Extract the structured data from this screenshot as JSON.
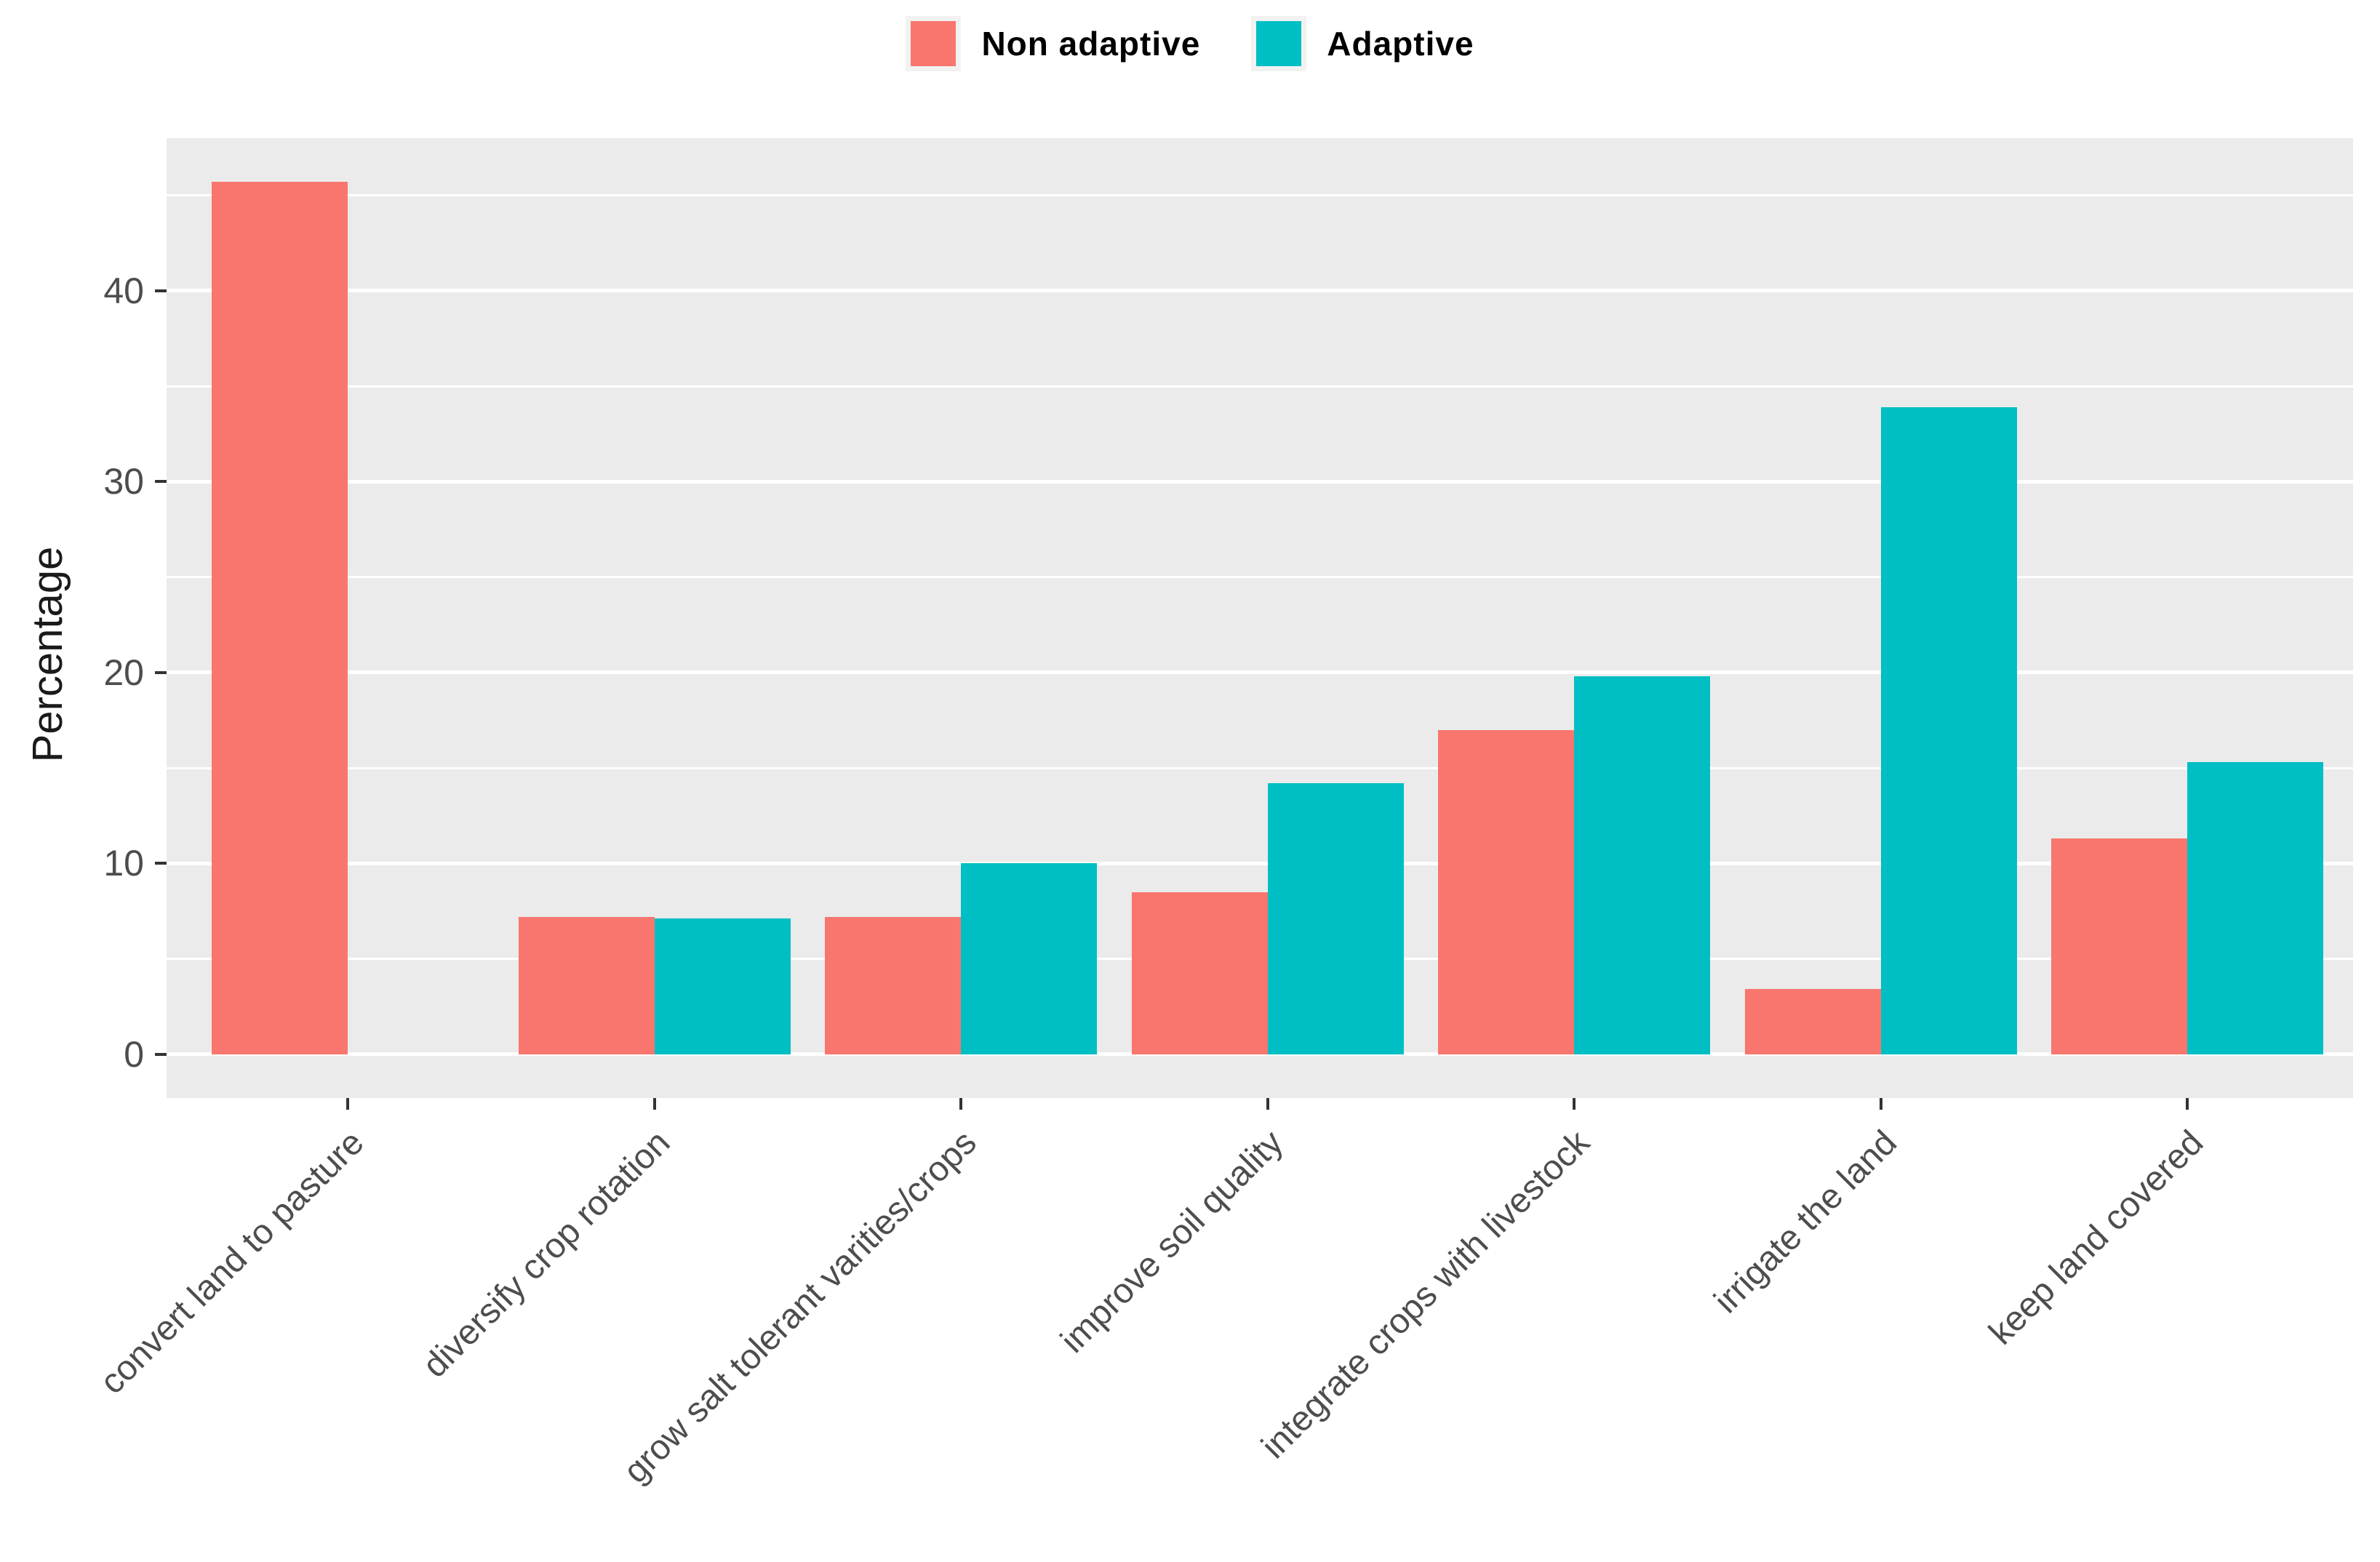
{
  "figure": {
    "background": "#FFFFFF",
    "panel_background": "#EBEBEB",
    "grid_color": "#FFFFFF",
    "tick_mark_color": "#333333",
    "axis_text_color": "#4D4D4D",
    "axis_title_color": "#1A1A1A",
    "legend_text_color": "#000000"
  },
  "chart_data": {
    "type": "bar",
    "bar_orientation": "vertical-grouped",
    "title": "",
    "xlabel": "",
    "ylabel": "Percentage",
    "categories": [
      "convert land to pasture",
      "diversify crop rotation",
      "grow salt tolerant varities/crops",
      "improve soil quality",
      "integrate crops with livestock",
      "irrigate the land",
      "keep land covered"
    ],
    "series": [
      {
        "name": "Non adaptive",
        "color": "#F8766D",
        "values": [
          45.7,
          7.2,
          7.2,
          8.5,
          17.0,
          3.4,
          11.3
        ]
      },
      {
        "name": "Adaptive",
        "color": "#00BFC4",
        "values": [
          null,
          7.1,
          10.0,
          14.2,
          19.8,
          33.9,
          15.3
        ]
      }
    ],
    "ylim": [
      -2.3,
      48
    ],
    "yticks": [
      0,
      10,
      20,
      30,
      40
    ],
    "yticks_minor": [
      5,
      15,
      25,
      35,
      45
    ],
    "grid": "major and minor horizontal white lines on gray panel",
    "legend_position": "top-center",
    "x_label_rotation_deg": 45
  }
}
